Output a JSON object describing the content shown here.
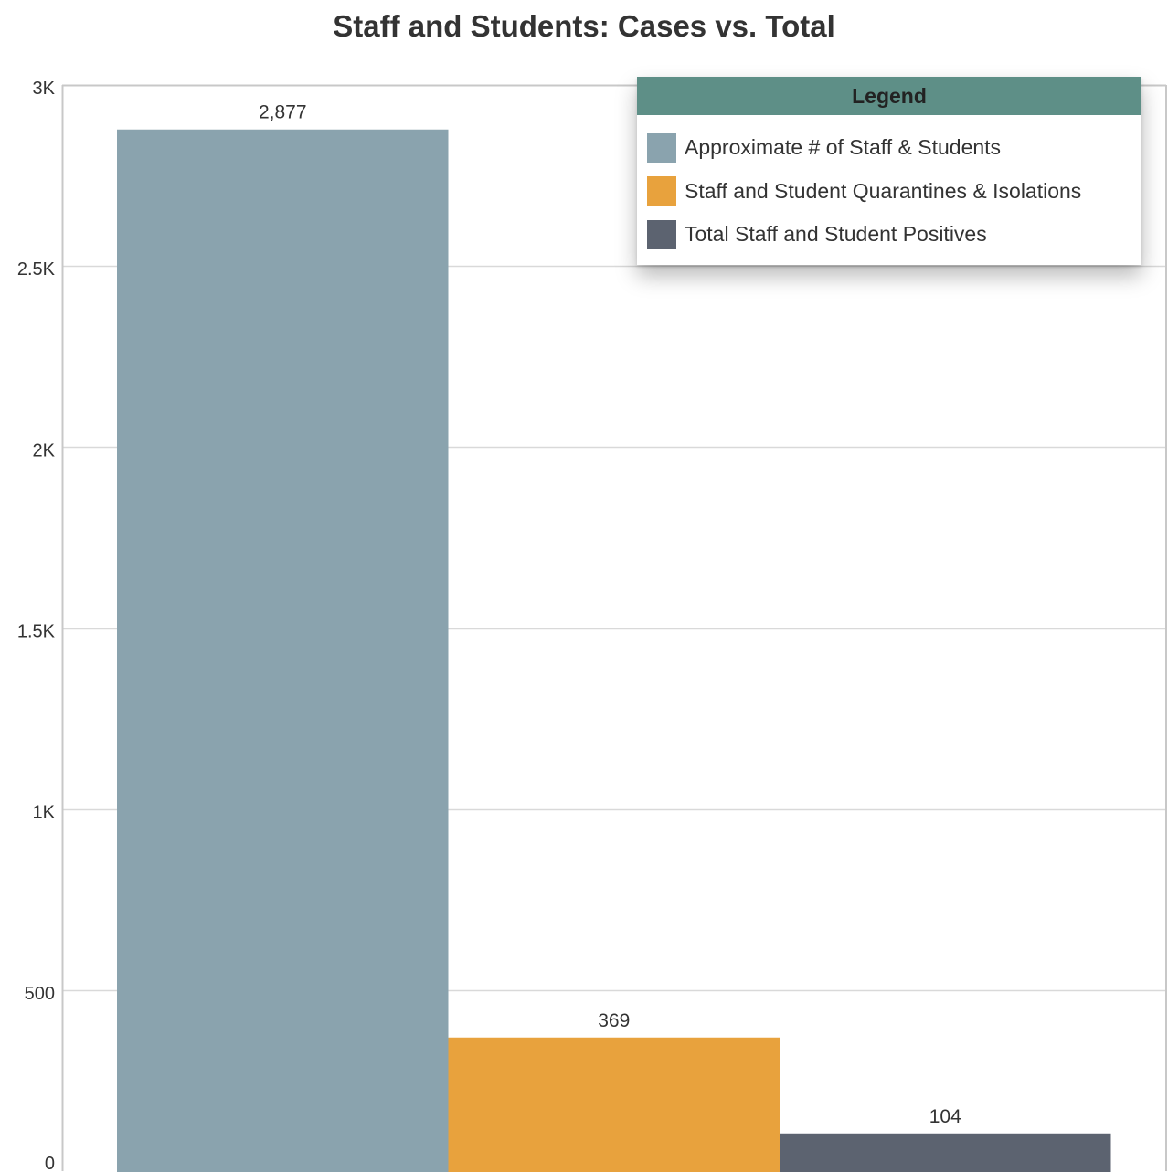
{
  "colors": {
    "legend_header_bg": "#5e8f87",
    "grid": "#d9d9d9",
    "axis": "#c8c8c8"
  },
  "legend": {
    "title": "Legend"
  },
  "chart_data": {
    "type": "bar",
    "title": "Staff and Students: Cases vs. Total",
    "xlabel": "",
    "ylabel": "",
    "ylim": [
      0,
      3000
    ],
    "yticks": [
      0,
      500,
      1000,
      1500,
      2000,
      2500,
      3000
    ],
    "ytick_labels": [
      "0",
      "500",
      "1K",
      "1.5K",
      "2K",
      "2.5K",
      "3K"
    ],
    "grid": true,
    "legend_position": "top-right",
    "series": [
      {
        "name": "Approximate # of Staff & Students",
        "values": [
          2877
        ],
        "label": "2,877",
        "color": "#8aa3ae"
      },
      {
        "name": "Staff and Student Quarantines & Isolations",
        "values": [
          369
        ],
        "label": "369",
        "color": "#e8a23d"
      },
      {
        "name": "Total Staff and Student Positives",
        "values": [
          104
        ],
        "label": "104",
        "color": "#5c6370"
      }
    ]
  }
}
